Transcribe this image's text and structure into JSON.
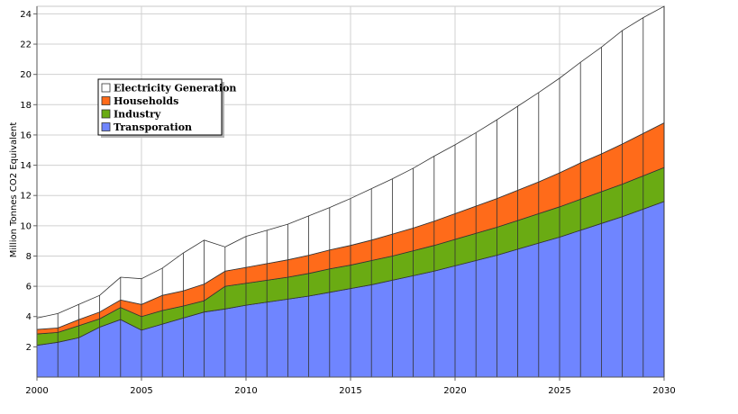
{
  "chart_data": {
    "type": "area",
    "stacked": true,
    "title": "",
    "xlabel": "",
    "ylabel": "Million Tonnes CO2 Equivalent",
    "xlim": [
      2000,
      2030
    ],
    "ylim": [
      0,
      24.5
    ],
    "x_ticks": [
      2000,
      2005,
      2010,
      2015,
      2020,
      2025,
      2030
    ],
    "y_ticks": [
      2,
      4,
      6,
      8,
      10,
      12,
      14,
      16,
      18,
      20,
      22,
      24
    ],
    "grid": true,
    "legend_position": "top-left",
    "x": [
      2000,
      2001,
      2002,
      2003,
      2004,
      2005,
      2006,
      2007,
      2008,
      2009,
      2010,
      2011,
      2012,
      2013,
      2014,
      2015,
      2016,
      2017,
      2018,
      2019,
      2020,
      2021,
      2022,
      2023,
      2024,
      2025,
      2026,
      2027,
      2028,
      2029,
      2030
    ],
    "series": [
      {
        "name": "Transporation",
        "color": "#6f85ff",
        "values": [
          2.1,
          2.3,
          2.6,
          3.3,
          3.8,
          3.1,
          3.5,
          3.9,
          4.3,
          4.5,
          4.75,
          4.95,
          5.15,
          5.35,
          5.6,
          5.85,
          6.1,
          6.4,
          6.7,
          7.0,
          7.35,
          7.7,
          8.05,
          8.45,
          8.85,
          9.25,
          9.7,
          10.15,
          10.6,
          11.1,
          11.6
        ]
      },
      {
        "name": "Industry",
        "color": "#6aab13",
        "values": [
          0.75,
          0.65,
          0.8,
          0.55,
          0.8,
          0.9,
          0.9,
          0.8,
          0.75,
          1.5,
          1.45,
          1.45,
          1.45,
          1.5,
          1.55,
          1.55,
          1.6,
          1.6,
          1.65,
          1.7,
          1.75,
          1.8,
          1.85,
          1.9,
          1.95,
          2.0,
          2.05,
          2.1,
          2.15,
          2.2,
          2.25
        ]
      },
      {
        "name": "Households",
        "color": "#ff6b1a",
        "values": [
          0.3,
          0.3,
          0.4,
          0.45,
          0.5,
          0.8,
          1.0,
          1.0,
          1.1,
          1.0,
          1.05,
          1.1,
          1.15,
          1.2,
          1.25,
          1.3,
          1.35,
          1.45,
          1.5,
          1.6,
          1.7,
          1.8,
          1.9,
          2.0,
          2.1,
          2.25,
          2.4,
          2.5,
          2.65,
          2.8,
          2.95
        ]
      },
      {
        "name": "Electricity Generation",
        "color": "#ffffff",
        "values": [
          0.75,
          0.95,
          1.0,
          1.1,
          1.5,
          1.7,
          1.8,
          2.5,
          2.9,
          1.6,
          2.05,
          2.2,
          2.35,
          2.6,
          2.8,
          3.1,
          3.4,
          3.65,
          3.95,
          4.3,
          4.55,
          4.85,
          5.2,
          5.55,
          5.9,
          6.25,
          6.65,
          7.05,
          7.5,
          7.65,
          7.7
        ]
      }
    ],
    "legend_order": [
      "Electricity Generation",
      "Households",
      "Industry",
      "Transporation"
    ]
  }
}
